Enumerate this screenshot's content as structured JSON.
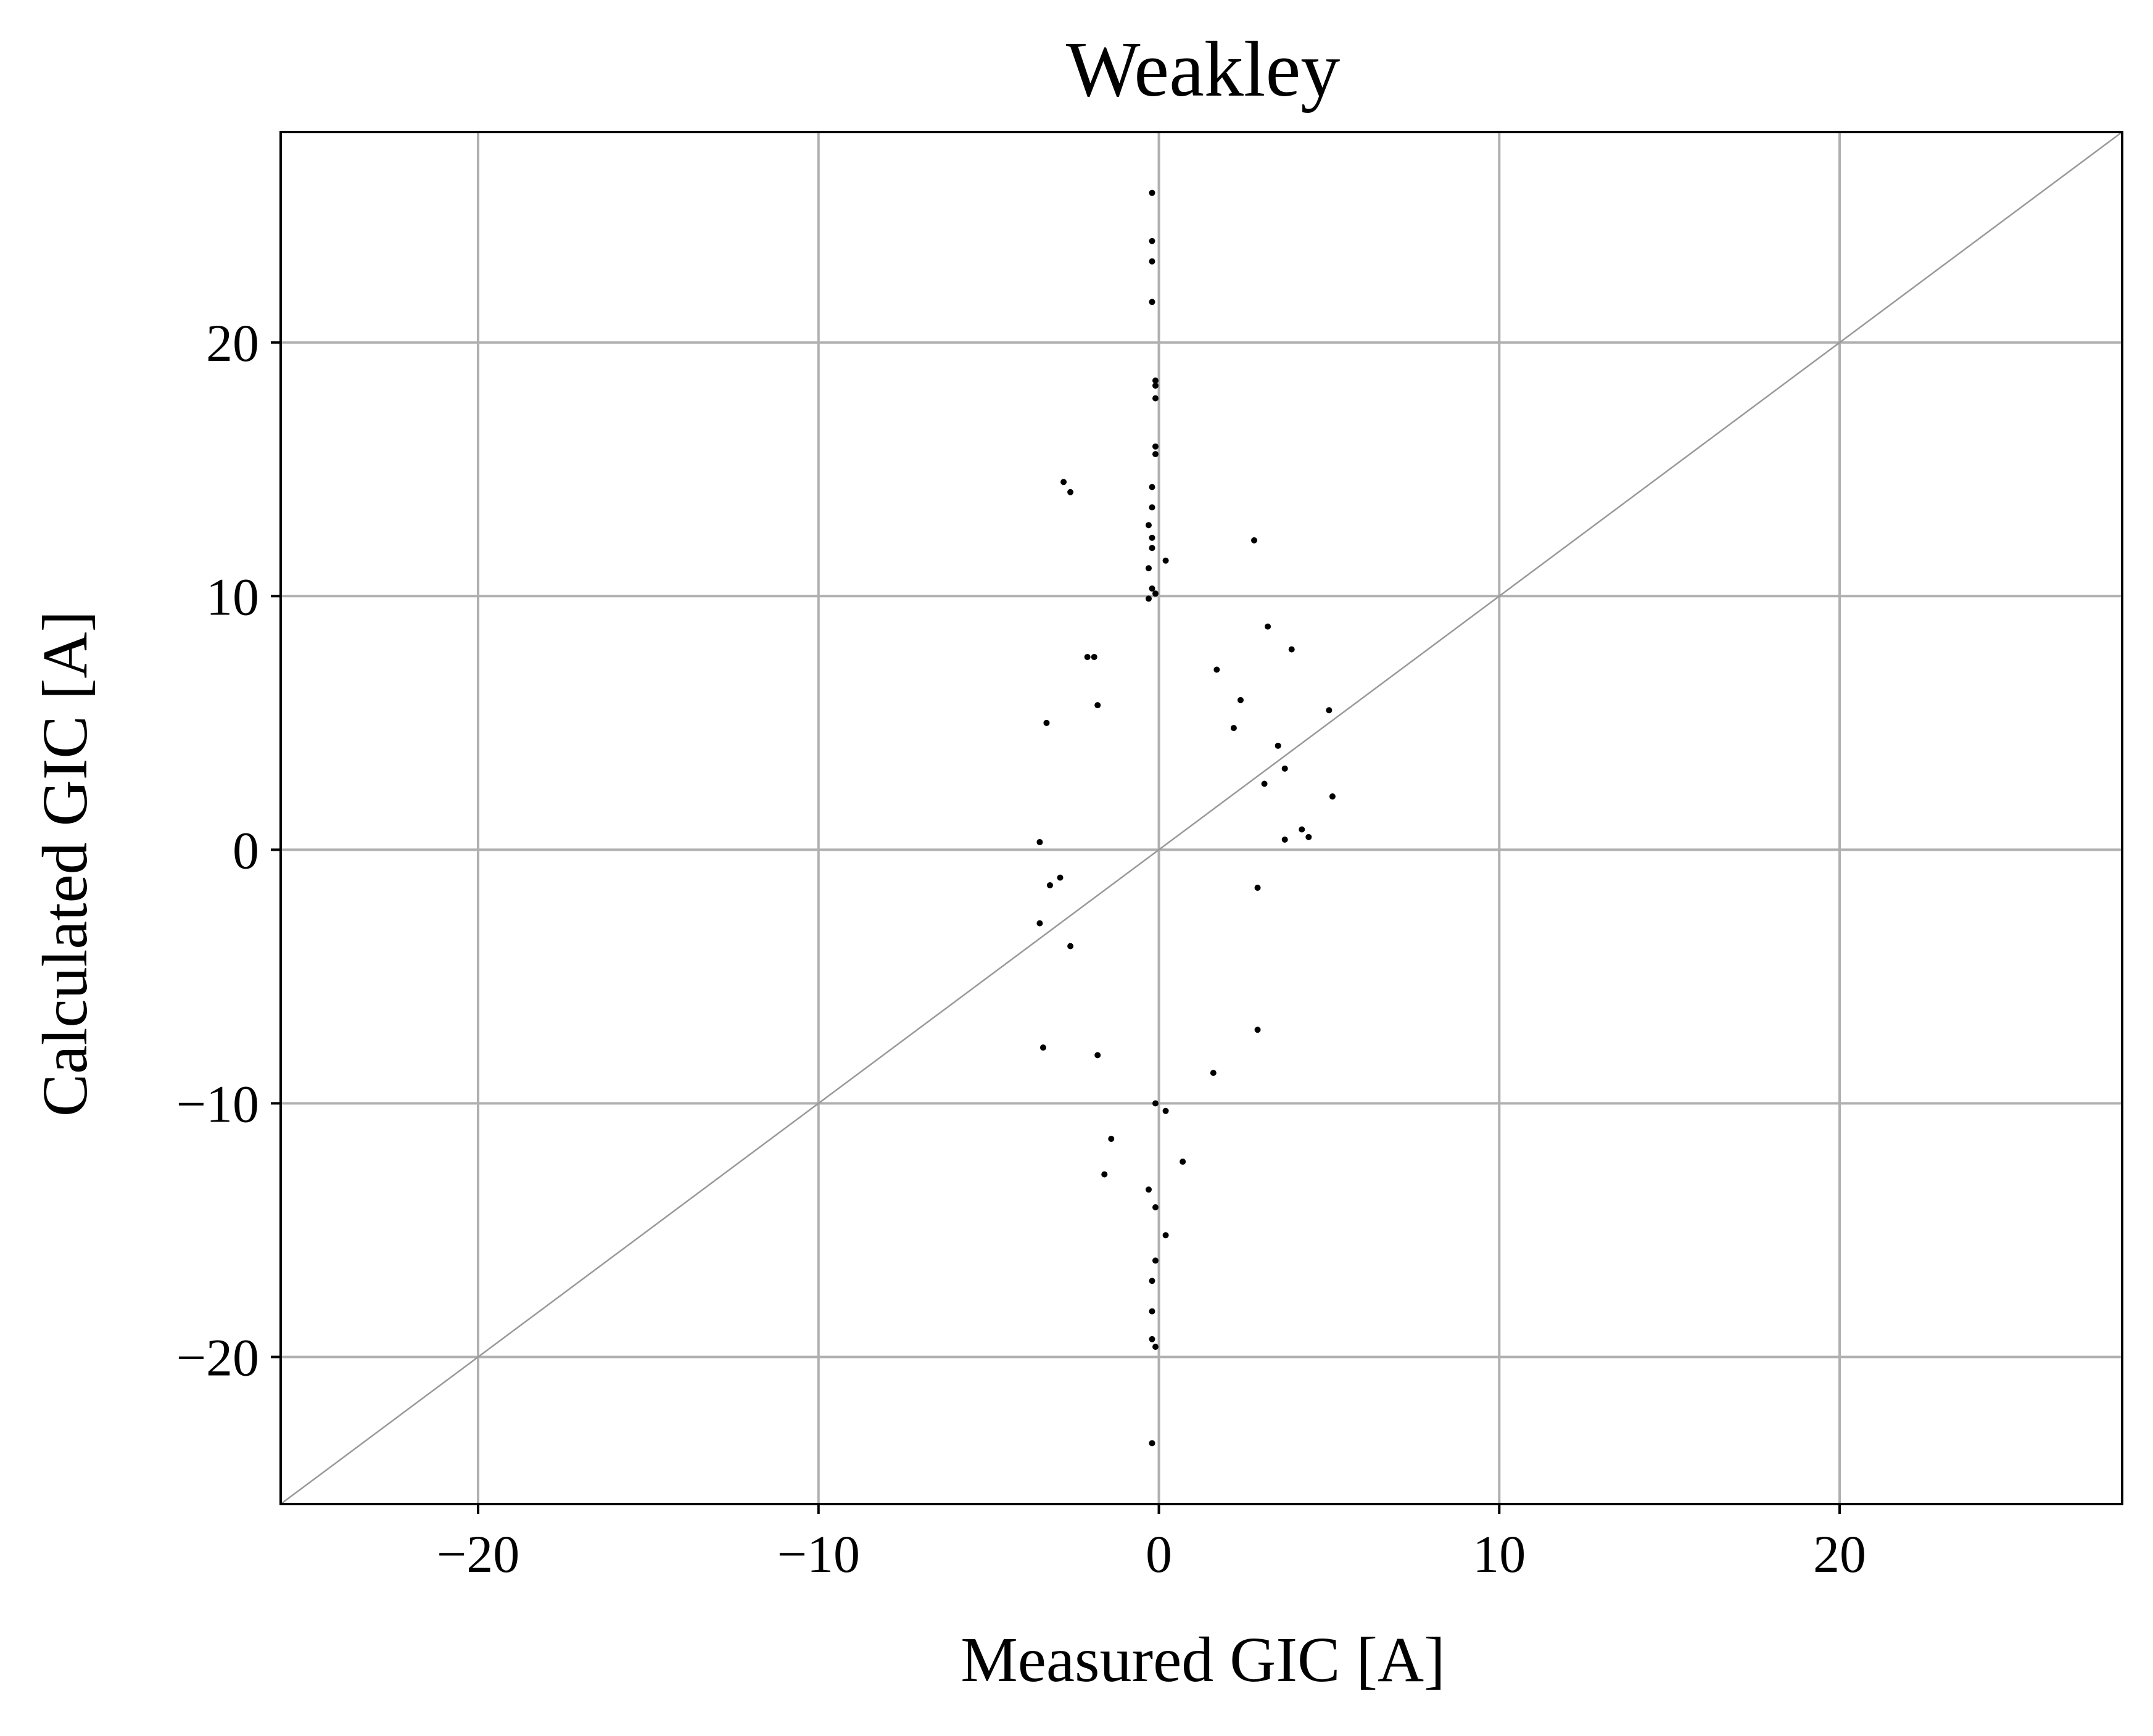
{
  "chart_data": {
    "type": "scatter",
    "title": "Weakley",
    "xlabel": "Measured GIC [A]",
    "ylabel": "Calculated GIC [A]",
    "xlim": [
      -25.8,
      28.3
    ],
    "ylim": [
      -25.8,
      28.3
    ],
    "xticks": [
      -20,
      -10,
      0,
      10,
      20
    ],
    "yticks": [
      -20,
      -10,
      0,
      10,
      20
    ],
    "xtick_labels": [
      "−20",
      "−10",
      "0",
      "10",
      "20"
    ],
    "ytick_labels": [
      "−20",
      "−10",
      "0",
      "10",
      "20"
    ],
    "grid": true,
    "reference_line": "y = x",
    "colors": {
      "points": "#000000",
      "grid": "#b0b0b0",
      "reference_line": "#999999",
      "frame": "#000000"
    },
    "series": [
      {
        "marker": "point",
        "points": [
          [
            -0.2,
            25.9
          ],
          [
            -0.2,
            24.0
          ],
          [
            -0.2,
            23.2
          ],
          [
            -0.2,
            21.6
          ],
          [
            -0.1,
            18.5
          ],
          [
            -0.1,
            18.3
          ],
          [
            -0.1,
            17.8
          ],
          [
            -0.1,
            15.9
          ],
          [
            -0.1,
            15.6
          ],
          [
            -0.2,
            14.3
          ],
          [
            -0.2,
            13.5
          ],
          [
            -0.3,
            12.8
          ],
          [
            -0.2,
            12.3
          ],
          [
            -0.2,
            11.9
          ],
          [
            -0.3,
            11.1
          ],
          [
            0.2,
            11.4
          ],
          [
            -0.2,
            10.3
          ],
          [
            -0.1,
            10.1
          ],
          [
            -0.3,
            9.9
          ],
          [
            -2.8,
            14.5
          ],
          [
            -2.6,
            14.1
          ],
          [
            2.8,
            12.2
          ],
          [
            3.2,
            8.8
          ],
          [
            3.9,
            7.9
          ],
          [
            5.0,
            5.5
          ],
          [
            5.1,
            2.1
          ],
          [
            4.4,
            0.5
          ],
          [
            4.2,
            0.8
          ],
          [
            -3.3,
            5.0
          ],
          [
            -2.1,
            7.6
          ],
          [
            -1.9,
            7.6
          ],
          [
            -1.8,
            5.7
          ],
          [
            1.7,
            7.1
          ],
          [
            -3.5,
            0.3
          ],
          [
            -3.5,
            -2.9
          ],
          [
            -3.4,
            -7.8
          ],
          [
            -1.8,
            -8.1
          ],
          [
            -1.4,
            -11.4
          ],
          [
            -1.6,
            -12.8
          ],
          [
            -0.2,
            -17.0
          ],
          [
            -0.2,
            -18.2
          ],
          [
            -0.2,
            -19.3
          ],
          [
            -0.1,
            -19.6
          ],
          [
            -0.2,
            -23.4
          ],
          [
            0.2,
            -15.2
          ],
          [
            -0.1,
            -16.2
          ],
          [
            -0.1,
            -14.1
          ],
          [
            -0.3,
            -13.4
          ],
          [
            0.7,
            -12.3
          ],
          [
            0.2,
            -10.3
          ],
          [
            -0.1,
            -10.0
          ],
          [
            2.9,
            -7.1
          ],
          [
            1.6,
            -8.8
          ],
          [
            -2.6,
            -3.8
          ],
          [
            -2.9,
            -1.1
          ],
          [
            -3.2,
            -1.4
          ],
          [
            2.4,
            5.9
          ],
          [
            2.2,
            4.8
          ],
          [
            3.5,
            4.1
          ],
          [
            3.7,
            3.2
          ],
          [
            3.1,
            2.6
          ],
          [
            2.9,
            -1.5
          ],
          [
            3.7,
            0.4
          ]
        ]
      }
    ]
  }
}
